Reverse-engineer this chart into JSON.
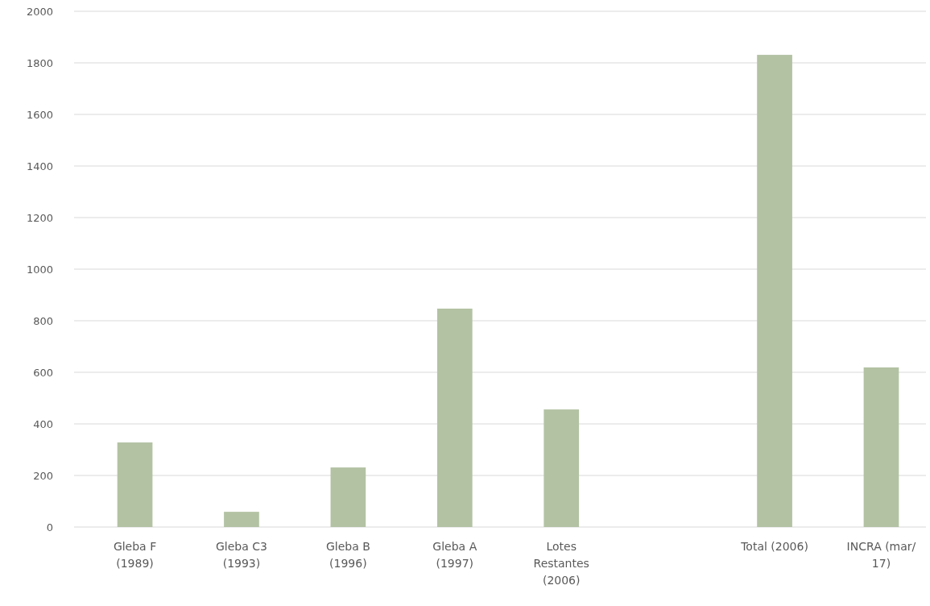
{
  "chart_data": {
    "type": "bar",
    "categories": [
      "Gleba F (1989)",
      "Gleba C3 (1993)",
      "Gleba B (1996)",
      "Gleba A (1997)",
      "Lotes Restantes (2006)",
      null,
      "Total (2006)",
      "INCRA (mar/17)"
    ],
    "values": [
      328,
      59,
      231,
      847,
      456,
      null,
      1831,
      619
    ],
    "color": "#b3c2a3",
    "ylim": [
      0,
      2000
    ],
    "yticks": [
      0,
      200,
      400,
      600,
      800,
      1000,
      1200,
      1400,
      1600,
      1800,
      2000
    ],
    "grid": "y"
  }
}
